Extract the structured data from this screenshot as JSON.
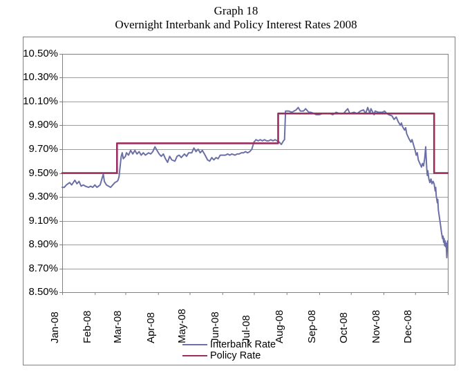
{
  "title": {
    "line1": "Graph 18",
    "line2": "Overnight Interbank and Policy Interest Rates 2008"
  },
  "colors": {
    "interbank_line": "#6A6FA8",
    "policy_line": "#9B2D5F",
    "gridline": "#9a9a9a",
    "plot_border": "#808080",
    "outer_border": "#7f7f7f",
    "text": "#000000"
  },
  "chart_data": {
    "type": "line",
    "title": "Graph 18 - Overnight Interbank and Policy Interest Rates 2008",
    "xlabel": "",
    "ylabel": "",
    "grid": "horizontal-major",
    "legend_position": "bottom",
    "ylim": [
      8.5,
      10.5
    ],
    "y_tick_step": 0.2,
    "y_tick_labels": [
      "10.50%",
      "10.30%",
      "10.10%",
      "9.90%",
      "9.70%",
      "9.50%",
      "9.30%",
      "9.10%",
      "8.90%",
      "8.70%",
      "8.50%"
    ],
    "x_unit": "day-of-year 2008 (0 = Jan 1)",
    "x_domain_days": [
      0,
      366
    ],
    "x_month_start_days": [
      0,
      31,
      60,
      91,
      121,
      152,
      182,
      213,
      244,
      274,
      305,
      335
    ],
    "x_tick_labels": [
      "Jan-08",
      "Feb-08",
      "Mar-08",
      "Apr-08",
      "May-08",
      "Jun-08",
      "Jul-08",
      "Aug-08",
      "Sep-08",
      "Oct-08",
      "Nov-08",
      "Dec-08"
    ],
    "series": [
      {
        "name": "Interbank Rate",
        "color": "#6A6FA8",
        "stroke_width": 2,
        "points": [
          [
            0,
            9.38
          ],
          [
            2,
            9.38
          ],
          [
            4,
            9.4
          ],
          [
            7,
            9.42
          ],
          [
            9,
            9.4
          ],
          [
            12,
            9.44
          ],
          [
            14,
            9.41
          ],
          [
            16,
            9.43
          ],
          [
            18,
            9.39
          ],
          [
            20,
            9.4
          ],
          [
            22,
            9.39
          ],
          [
            25,
            9.38
          ],
          [
            27,
            9.39
          ],
          [
            29,
            9.38
          ],
          [
            31,
            9.4
          ],
          [
            33,
            9.38
          ],
          [
            36,
            9.4
          ],
          [
            38,
            9.46
          ],
          [
            39,
            9.49
          ],
          [
            40,
            9.43
          ],
          [
            42,
            9.4
          ],
          [
            44,
            9.39
          ],
          [
            46,
            9.38
          ],
          [
            48,
            9.4
          ],
          [
            50,
            9.42
          ],
          [
            52,
            9.43
          ],
          [
            53,
            9.44
          ],
          [
            54,
            9.47
          ],
          [
            55,
            9.56
          ],
          [
            56,
            9.64
          ],
          [
            57,
            9.67
          ],
          [
            58,
            9.62
          ],
          [
            60,
            9.64
          ],
          [
            61,
            9.67
          ],
          [
            63,
            9.65
          ],
          [
            65,
            9.69
          ],
          [
            67,
            9.66
          ],
          [
            69,
            9.69
          ],
          [
            71,
            9.66
          ],
          [
            73,
            9.68
          ],
          [
            75,
            9.65
          ],
          [
            77,
            9.67
          ],
          [
            79,
            9.65
          ],
          [
            82,
            9.67
          ],
          [
            84,
            9.66
          ],
          [
            86,
            9.68
          ],
          [
            88,
            9.72
          ],
          [
            90,
            9.69
          ],
          [
            92,
            9.66
          ],
          [
            94,
            9.64
          ],
          [
            96,
            9.66
          ],
          [
            98,
            9.62
          ],
          [
            100,
            9.59
          ],
          [
            102,
            9.64
          ],
          [
            104,
            9.61
          ],
          [
            107,
            9.6
          ],
          [
            109,
            9.64
          ],
          [
            111,
            9.65
          ],
          [
            113,
            9.63
          ],
          [
            116,
            9.66
          ],
          [
            118,
            9.64
          ],
          [
            120,
            9.67
          ],
          [
            123,
            9.67
          ],
          [
            125,
            9.71
          ],
          [
            127,
            9.68
          ],
          [
            129,
            9.7
          ],
          [
            131,
            9.67
          ],
          [
            133,
            9.69
          ],
          [
            135,
            9.66
          ],
          [
            138,
            9.61
          ],
          [
            140,
            9.6
          ],
          [
            142,
            9.63
          ],
          [
            144,
            9.61
          ],
          [
            146,
            9.63
          ],
          [
            148,
            9.62
          ],
          [
            150,
            9.65
          ],
          [
            152,
            9.65
          ],
          [
            155,
            9.65
          ],
          [
            157,
            9.66
          ],
          [
            159,
            9.65
          ],
          [
            161,
            9.66
          ],
          [
            164,
            9.65
          ],
          [
            166,
            9.66
          ],
          [
            168,
            9.66
          ],
          [
            170,
            9.67
          ],
          [
            172,
            9.67
          ],
          [
            174,
            9.68
          ],
          [
            176,
            9.67
          ],
          [
            178,
            9.68
          ],
          [
            180,
            9.7
          ],
          [
            182,
            9.76
          ],
          [
            184,
            9.78
          ],
          [
            186,
            9.77
          ],
          [
            188,
            9.78
          ],
          [
            190,
            9.77
          ],
          [
            192,
            9.78
          ],
          [
            194,
            9.77
          ],
          [
            196,
            9.77
          ],
          [
            198,
            9.78
          ],
          [
            200,
            9.77
          ],
          [
            202,
            9.78
          ],
          [
            204,
            9.77
          ],
          [
            206,
            9.76
          ],
          [
            208,
            9.74
          ],
          [
            210,
            9.77
          ],
          [
            211,
            9.78
          ],
          [
            212,
            10.02
          ],
          [
            215,
            10.02
          ],
          [
            218,
            10.01
          ],
          [
            222,
            10.03
          ],
          [
            224,
            10.05
          ],
          [
            226,
            10.02
          ],
          [
            229,
            10.02
          ],
          [
            231,
            10.04
          ],
          [
            234,
            10.01
          ],
          [
            236,
            10.01
          ],
          [
            239,
            10.0
          ],
          [
            241,
            9.99
          ],
          [
            244,
            9.99
          ],
          [
            247,
            10.0
          ],
          [
            250,
            10.0
          ],
          [
            254,
            10.0
          ],
          [
            257,
            9.99
          ],
          [
            260,
            10.01
          ],
          [
            263,
            10.0
          ],
          [
            267,
            10.0
          ],
          [
            269,
            10.02
          ],
          [
            271,
            10.04
          ],
          [
            273,
            10.0
          ],
          [
            277,
            10.01
          ],
          [
            280,
            10.0
          ],
          [
            283,
            10.02
          ],
          [
            286,
            10.03
          ],
          [
            288,
            10.0
          ],
          [
            290,
            10.05
          ],
          [
            292,
            10.0
          ],
          [
            293,
            10.04
          ],
          [
            296,
            9.99
          ],
          [
            297,
            10.02
          ],
          [
            300,
            10.01
          ],
          [
            304,
            10.01
          ],
          [
            306,
            10.02
          ],
          [
            308,
            10.0
          ],
          [
            310,
            9.99
          ],
          [
            313,
            9.98
          ],
          [
            315,
            9.95
          ],
          [
            317,
            9.97
          ],
          [
            319,
            9.93
          ],
          [
            321,
            9.9
          ],
          [
            322,
            9.92
          ],
          [
            323,
            9.89
          ],
          [
            325,
            9.86
          ],
          [
            326,
            9.88
          ],
          [
            327,
            9.83
          ],
          [
            329,
            9.79
          ],
          [
            331,
            9.76
          ],
          [
            332,
            9.78
          ],
          [
            334,
            9.72
          ],
          [
            335,
            9.69
          ],
          [
            336,
            9.65
          ],
          [
            337,
            9.67
          ],
          [
            338,
            9.61
          ],
          [
            339,
            9.59
          ],
          [
            340,
            9.57
          ],
          [
            341,
            9.55
          ],
          [
            342,
            9.58
          ],
          [
            343,
            9.56
          ],
          [
            344,
            9.62
          ],
          [
            345,
            9.72
          ],
          [
            345.5,
            9.63
          ],
          [
            346,
            9.54
          ],
          [
            346.5,
            9.48
          ],
          [
            347,
            9.52
          ],
          [
            348,
            9.45
          ],
          [
            349,
            9.42
          ],
          [
            350,
            9.45
          ],
          [
            351,
            9.41
          ],
          [
            352,
            9.43
          ],
          [
            353,
            9.41
          ],
          [
            354,
            9.35
          ],
          [
            354.5,
            9.38
          ],
          [
            355,
            9.31
          ],
          [
            356,
            9.25
          ],
          [
            356.5,
            9.28
          ],
          [
            357,
            9.19
          ],
          [
            358,
            9.13
          ],
          [
            359,
            9.07
          ],
          [
            360,
            9.0
          ],
          [
            361,
            8.95
          ],
          [
            361.5,
            8.97
          ],
          [
            362,
            8.92
          ],
          [
            362.5,
            8.95
          ],
          [
            363,
            8.89
          ],
          [
            363.5,
            8.93
          ],
          [
            364,
            8.88
          ],
          [
            364.5,
            8.91
          ],
          [
            365,
            8.79
          ],
          [
            365.8,
            8.93
          ]
        ]
      },
      {
        "name": "Policy Rate",
        "color": "#9B2D5F",
        "stroke_width": 2.6,
        "points": [
          [
            0,
            9.5
          ],
          [
            52,
            9.5
          ],
          [
            52,
            9.75
          ],
          [
            205,
            9.75
          ],
          [
            205,
            10.0
          ],
          [
            353,
            10.0
          ],
          [
            353,
            9.5
          ],
          [
            366,
            9.5
          ]
        ]
      }
    ]
  }
}
